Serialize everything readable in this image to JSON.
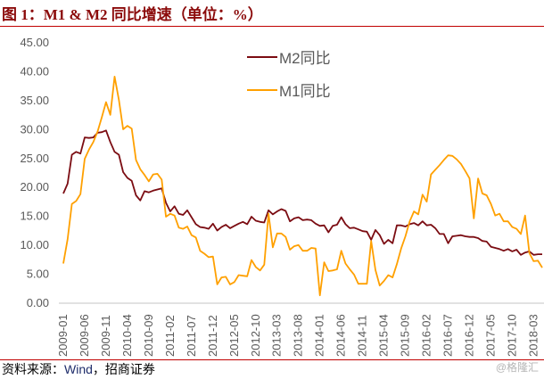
{
  "title": "图 1：M1 & M2 同比增速（单位：%）",
  "source": {
    "prefix": "资料来源：",
    "wind": "Wind",
    "rest": "，招商证券"
  },
  "watermark": "@格隆汇",
  "chart_data": {
    "type": "line",
    "title": "",
    "xlabel": "",
    "ylabel": "",
    "ylim": [
      0,
      45
    ],
    "yticks": [
      "0.00",
      "5.00",
      "10.00",
      "15.00",
      "20.00",
      "25.00",
      "30.00",
      "35.00",
      "40.00",
      "45.00"
    ],
    "grid": false,
    "legend_position": "top-center",
    "x_start": "2009-01",
    "x_end": "2018-05",
    "xtick_labels": [
      "2009-01",
      "2009-06",
      "2009-11",
      "2010-04",
      "2010-09",
      "2011-02",
      "2011-07",
      "2011-12",
      "2012-05",
      "2012-10",
      "2013-03",
      "2013-08",
      "2014-01",
      "2014-06",
      "2014-11",
      "2015-04",
      "2015-09",
      "2016-02",
      "2016-07",
      "2016-12",
      "2017-05",
      "2017-10",
      "2018-03"
    ],
    "series": [
      {
        "name": "M2同比",
        "color": "#7b0c12",
        "values": [
          18.8,
          20.5,
          25.5,
          26.0,
          25.7,
          28.5,
          28.4,
          28.5,
          29.3,
          29.4,
          29.7,
          27.7,
          26.0,
          25.5,
          22.5,
          21.5,
          21.0,
          18.5,
          17.6,
          19.2,
          19.0,
          19.3,
          19.5,
          19.7,
          17.2,
          15.7,
          16.6,
          15.3,
          15.1,
          15.9,
          14.7,
          13.5,
          13.0,
          12.9,
          12.7,
          13.6,
          12.4,
          13.0,
          13.4,
          12.8,
          13.2,
          13.6,
          13.9,
          13.5,
          14.8,
          14.1,
          13.9,
          13.8,
          15.9,
          15.2,
          15.7,
          16.1,
          15.8,
          14.0,
          14.5,
          14.7,
          14.2,
          14.3,
          14.2,
          13.6,
          13.2,
          13.3,
          12.1,
          13.2,
          13.4,
          14.7,
          13.5,
          12.8,
          12.9,
          12.6,
          12.3,
          12.2,
          10.8,
          12.5,
          11.6,
          10.1,
          10.8,
          10.2,
          13.3,
          13.3,
          13.1,
          13.5,
          13.7,
          13.3,
          14.0,
          13.3,
          13.4,
          12.8,
          11.8,
          11.8,
          10.2,
          11.4,
          11.5,
          11.6,
          11.4,
          11.3,
          11.3,
          11.1,
          10.6,
          10.5,
          9.6,
          9.4,
          9.2,
          8.9,
          9.2,
          8.8,
          9.1,
          8.2,
          8.6,
          8.8,
          8.2,
          8.3,
          8.3
        ]
      },
      {
        "name": "M1同比",
        "color": "#ffa000",
        "values": [
          6.7,
          10.9,
          17.0,
          17.5,
          18.7,
          24.8,
          26.4,
          27.7,
          29.5,
          32.0,
          34.6,
          32.4,
          39.0,
          35.0,
          29.9,
          30.5,
          30.0,
          24.6,
          23.0,
          22.0,
          20.9,
          22.1,
          22.2,
          21.2,
          14.8,
          15.3,
          15.0,
          12.9,
          12.7,
          13.1,
          11.6,
          11.2,
          8.9,
          8.4,
          7.8,
          7.9,
          3.1,
          4.3,
          4.4,
          3.1,
          3.5,
          4.7,
          4.6,
          4.5,
          7.3,
          6.1,
          5.5,
          6.5,
          15.3,
          9.5,
          11.9,
          11.9,
          11.3,
          9.1,
          9.7,
          9.9,
          8.9,
          8.9,
          9.4,
          9.3,
          1.2,
          6.9,
          5.4,
          5.5,
          5.7,
          8.9,
          6.7,
          5.7,
          4.8,
          3.2,
          3.2,
          3.2,
          10.6,
          5.6,
          2.9,
          3.7,
          4.7,
          4.3,
          6.6,
          9.3,
          11.4,
          14.0,
          15.7,
          15.2,
          18.6,
          17.4,
          22.1,
          22.9,
          23.7,
          24.6,
          25.4,
          25.3,
          24.7,
          23.9,
          22.7,
          21.4,
          14.5,
          21.4,
          18.8,
          18.5,
          17.0,
          15.0,
          15.3,
          14.0,
          14.0,
          13.0,
          12.7,
          11.8,
          15.0,
          8.5,
          7.1,
          7.2,
          6.0
        ]
      }
    ]
  }
}
